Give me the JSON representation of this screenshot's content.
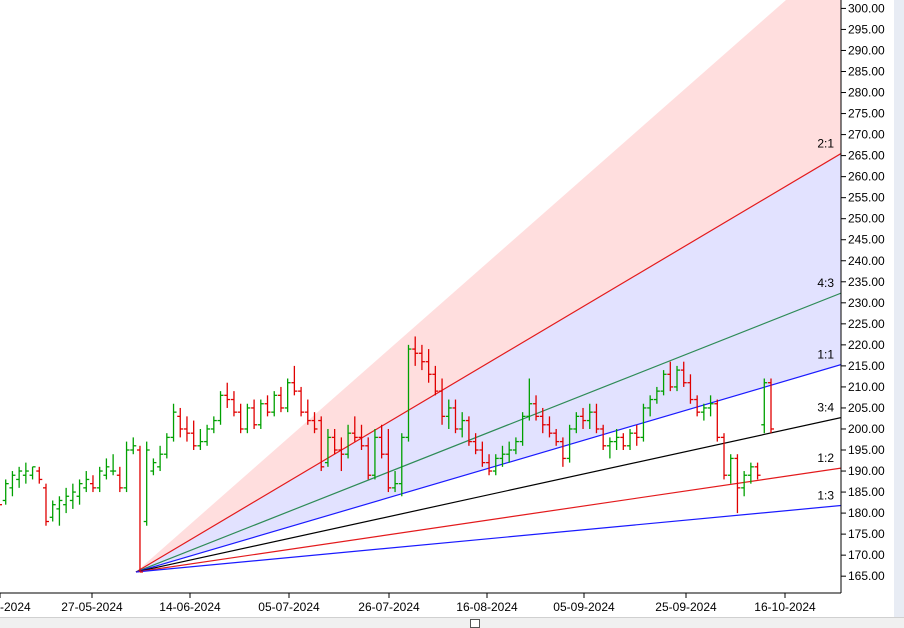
{
  "chart_data": {
    "type": "ohlc-bar-with-gann-fan",
    "title": "",
    "xlabel": "",
    "ylabel": "",
    "ylim": [
      161,
      302
    ],
    "y_ticks": [
      "165.00",
      "170.00",
      "175.00",
      "180.00",
      "185.00",
      "190.00",
      "195.00",
      "200.00",
      "205.00",
      "210.00",
      "215.00",
      "220.00",
      "225.00",
      "230.00",
      "235.00",
      "240.00",
      "245.00",
      "250.00",
      "255.00",
      "260.00",
      "265.00",
      "270.00",
      "275.00",
      "280.00",
      "285.00",
      "290.00",
      "295.00",
      "300.00"
    ],
    "x_ticks": [
      "-2024",
      "27-05-2024",
      "14-06-2024",
      "05-07-2024",
      "26-07-2024",
      "16-08-2024",
      "05-09-2024",
      "25-09-2024",
      "16-10-2024"
    ],
    "grid": false,
    "colors": {
      "up": "#00a000",
      "down": "#e00000"
    },
    "gann_fan": {
      "origin_y": 166,
      "lines": [
        {
          "label": "2:1",
          "y_end": 265.5,
          "color": "#e31a1c"
        },
        {
          "label": "4:3",
          "y_end": 232.3,
          "color": "#2e8b57"
        },
        {
          "label": "1:1",
          "y_end": 215.3,
          "color": "#1a1aff"
        },
        {
          "label": "3:4",
          "y_end": 202.7,
          "color": "#000000"
        },
        {
          "label": "1:2",
          "y_end": 190.7,
          "color": "#e31a1c"
        },
        {
          "label": "1:3",
          "y_end": 181.8,
          "color": "#1a1aff"
        }
      ],
      "fill_upper": "#ffdede",
      "fill_middle": "#e2e2ff"
    },
    "series": [
      {
        "o": 184,
        "h": 186,
        "l": 181,
        "c": 182
      },
      {
        "o": 183,
        "h": 188,
        "l": 182,
        "c": 187
      },
      {
        "o": 186,
        "h": 190,
        "l": 184,
        "c": 189
      },
      {
        "o": 188,
        "h": 191,
        "l": 186,
        "c": 190
      },
      {
        "o": 189,
        "h": 192,
        "l": 187,
        "c": 190
      },
      {
        "o": 189,
        "h": 191,
        "l": 188,
        "c": 191
      },
      {
        "o": 190,
        "h": 191,
        "l": 187,
        "c": 188
      },
      {
        "o": 186,
        "h": 187,
        "l": 177,
        "c": 178
      },
      {
        "o": 179,
        "h": 183,
        "l": 178,
        "c": 182
      },
      {
        "o": 181,
        "h": 184,
        "l": 177,
        "c": 183
      },
      {
        "o": 182,
        "h": 186,
        "l": 180,
        "c": 184
      },
      {
        "o": 183,
        "h": 187,
        "l": 181,
        "c": 185
      },
      {
        "o": 184,
        "h": 188,
        "l": 182,
        "c": 187
      },
      {
        "o": 186,
        "h": 190,
        "l": 185,
        "c": 188
      },
      {
        "o": 187,
        "h": 189,
        "l": 185,
        "c": 186
      },
      {
        "o": 186,
        "h": 191,
        "l": 185,
        "c": 190
      },
      {
        "o": 189,
        "h": 193,
        "l": 188,
        "c": 191
      },
      {
        "o": 190,
        "h": 194,
        "l": 189,
        "c": 190
      },
      {
        "o": 189,
        "h": 191,
        "l": 185,
        "c": 186
      },
      {
        "o": 186,
        "h": 197,
        "l": 185,
        "c": 195
      },
      {
        "o": 195,
        "h": 198,
        "l": 194,
        "c": 196
      },
      {
        "o": 195,
        "h": 196,
        "l": 166,
        "c": 166
      },
      {
        "o": 178,
        "h": 197,
        "l": 177,
        "c": 195
      },
      {
        "o": 190,
        "h": 193,
        "l": 189,
        "c": 192
      },
      {
        "o": 191,
        "h": 196,
        "l": 190,
        "c": 194
      },
      {
        "o": 194,
        "h": 199,
        "l": 193,
        "c": 198
      },
      {
        "o": 198,
        "h": 206,
        "l": 197,
        "c": 204
      },
      {
        "o": 203,
        "h": 205,
        "l": 198,
        "c": 200
      },
      {
        "o": 200,
        "h": 203,
        "l": 197,
        "c": 199
      },
      {
        "o": 199,
        "h": 202,
        "l": 195,
        "c": 196
      },
      {
        "o": 196,
        "h": 200,
        "l": 195,
        "c": 197
      },
      {
        "o": 197,
        "h": 201,
        "l": 196,
        "c": 200
      },
      {
        "o": 200,
        "h": 203,
        "l": 199,
        "c": 202
      },
      {
        "o": 202,
        "h": 209,
        "l": 201,
        "c": 208
      },
      {
        "o": 208,
        "h": 211,
        "l": 205,
        "c": 207
      },
      {
        "o": 207,
        "h": 209,
        "l": 203,
        "c": 204
      },
      {
        "o": 204,
        "h": 206,
        "l": 199,
        "c": 200
      },
      {
        "o": 200,
        "h": 206,
        "l": 199,
        "c": 205
      },
      {
        "o": 205,
        "h": 207,
        "l": 200,
        "c": 201
      },
      {
        "o": 201,
        "h": 207,
        "l": 200,
        "c": 206
      },
      {
        "o": 206,
        "h": 208,
        "l": 203,
        "c": 204
      },
      {
        "o": 204,
        "h": 209,
        "l": 203,
        "c": 208
      },
      {
        "o": 208,
        "h": 210,
        "l": 204,
        "c": 205
      },
      {
        "o": 205,
        "h": 212,
        "l": 204,
        "c": 211
      },
      {
        "o": 211,
        "h": 215,
        "l": 208,
        "c": 209
      },
      {
        "o": 209,
        "h": 210,
        "l": 203,
        "c": 204
      },
      {
        "o": 204,
        "h": 207,
        "l": 201,
        "c": 202
      },
      {
        "o": 202,
        "h": 204,
        "l": 199,
        "c": 200
      },
      {
        "o": 202,
        "h": 203,
        "l": 190,
        "c": 191
      },
      {
        "o": 192,
        "h": 200,
        "l": 191,
        "c": 198
      },
      {
        "o": 198,
        "h": 200,
        "l": 194,
        "c": 195
      },
      {
        "o": 195,
        "h": 198,
        "l": 190,
        "c": 194
      },
      {
        "o": 194,
        "h": 201,
        "l": 193,
        "c": 199
      },
      {
        "o": 199,
        "h": 203,
        "l": 197,
        "c": 198
      },
      {
        "o": 198,
        "h": 201,
        "l": 195,
        "c": 196
      },
      {
        "o": 196,
        "h": 198,
        "l": 188,
        "c": 189
      },
      {
        "o": 189,
        "h": 200,
        "l": 188,
        "c": 198
      },
      {
        "o": 198,
        "h": 201,
        "l": 193,
        "c": 194
      },
      {
        "o": 194,
        "h": 200,
        "l": 185,
        "c": 186
      },
      {
        "o": 186,
        "h": 190,
        "l": 185,
        "c": 187
      },
      {
        "o": 187,
        "h": 199,
        "l": 184,
        "c": 198
      },
      {
        "o": 198,
        "h": 220,
        "l": 197,
        "c": 219
      },
      {
        "o": 219,
        "h": 222,
        "l": 215,
        "c": 218
      },
      {
        "o": 218,
        "h": 220,
        "l": 214,
        "c": 216
      },
      {
        "o": 216,
        "h": 219,
        "l": 211,
        "c": 213
      },
      {
        "o": 213,
        "h": 215,
        "l": 208,
        "c": 209
      },
      {
        "o": 209,
        "h": 212,
        "l": 201,
        "c": 203
      },
      {
        "o": 203,
        "h": 207,
        "l": 200,
        "c": 205
      },
      {
        "o": 205,
        "h": 207,
        "l": 199,
        "c": 200
      },
      {
        "o": 200,
        "h": 204,
        "l": 198,
        "c": 202
      },
      {
        "o": 202,
        "h": 203,
        "l": 196,
        "c": 197
      },
      {
        "o": 197,
        "h": 199,
        "l": 194,
        "c": 195
      },
      {
        "o": 195,
        "h": 197,
        "l": 191,
        "c": 192
      },
      {
        "o": 192,
        "h": 194,
        "l": 189,
        "c": 190
      },
      {
        "o": 190,
        "h": 194,
        "l": 189,
        "c": 193
      },
      {
        "o": 193,
        "h": 196,
        "l": 191,
        "c": 194
      },
      {
        "o": 194,
        "h": 197,
        "l": 192,
        "c": 195
      },
      {
        "o": 195,
        "h": 198,
        "l": 194,
        "c": 197
      },
      {
        "o": 197,
        "h": 204,
        "l": 196,
        "c": 203
      },
      {
        "o": 203,
        "h": 212,
        "l": 202,
        "c": 206
      },
      {
        "o": 206,
        "h": 208,
        "l": 202,
        "c": 203
      },
      {
        "o": 203,
        "h": 205,
        "l": 199,
        "c": 201
      },
      {
        "o": 201,
        "h": 203,
        "l": 198,
        "c": 199
      },
      {
        "o": 199,
        "h": 200,
        "l": 196,
        "c": 197
      },
      {
        "o": 197,
        "h": 198,
        "l": 191,
        "c": 193
      },
      {
        "o": 193,
        "h": 201,
        "l": 192,
        "c": 200
      },
      {
        "o": 200,
        "h": 204,
        "l": 199,
        "c": 203
      },
      {
        "o": 203,
        "h": 205,
        "l": 200,
        "c": 202
      },
      {
        "o": 202,
        "h": 206,
        "l": 200,
        "c": 204
      },
      {
        "o": 204,
        "h": 206,
        "l": 199,
        "c": 200
      },
      {
        "o": 200,
        "h": 201,
        "l": 195,
        "c": 196
      },
      {
        "o": 196,
        "h": 198,
        "l": 193,
        "c": 197
      },
      {
        "o": 197,
        "h": 200,
        "l": 195,
        "c": 198
      },
      {
        "o": 198,
        "h": 199,
        "l": 195,
        "c": 196
      },
      {
        "o": 196,
        "h": 200,
        "l": 195,
        "c": 199
      },
      {
        "o": 199,
        "h": 201,
        "l": 196,
        "c": 198
      },
      {
        "o": 198,
        "h": 206,
        "l": 197,
        "c": 205
      },
      {
        "o": 205,
        "h": 208,
        "l": 203,
        "c": 207
      },
      {
        "o": 207,
        "h": 210,
        "l": 206,
        "c": 209
      },
      {
        "o": 209,
        "h": 214,
        "l": 208,
        "c": 213
      },
      {
        "o": 213,
        "h": 216,
        "l": 209,
        "c": 210
      },
      {
        "o": 210,
        "h": 215,
        "l": 209,
        "c": 214
      },
      {
        "o": 214,
        "h": 216,
        "l": 210,
        "c": 211
      },
      {
        "o": 211,
        "h": 213,
        "l": 206,
        "c": 207
      },
      {
        "o": 207,
        "h": 208,
        "l": 203,
        "c": 204
      },
      {
        "o": 204,
        "h": 206,
        "l": 202,
        "c": 205
      },
      {
        "o": 205,
        "h": 208,
        "l": 203,
        "c": 206
      },
      {
        "o": 206,
        "h": 207,
        "l": 197,
        "c": 198
      },
      {
        "o": 198,
        "h": 199,
        "l": 188,
        "c": 189
      },
      {
        "o": 189,
        "h": 194,
        "l": 187,
        "c": 193
      },
      {
        "o": 193,
        "h": 194,
        "l": 180,
        "c": 186
      },
      {
        "o": 186,
        "h": 190,
        "l": 184,
        "c": 189
      },
      {
        "o": 189,
        "h": 192,
        "l": 187,
        "c": 191
      },
      {
        "o": 191,
        "h": 192,
        "l": 188,
        "c": 189
      },
      {
        "o": 201,
        "h": 212,
        "l": 199,
        "c": 211
      },
      {
        "o": 211,
        "h": 212,
        "l": 199,
        "c": 200
      }
    ]
  }
}
